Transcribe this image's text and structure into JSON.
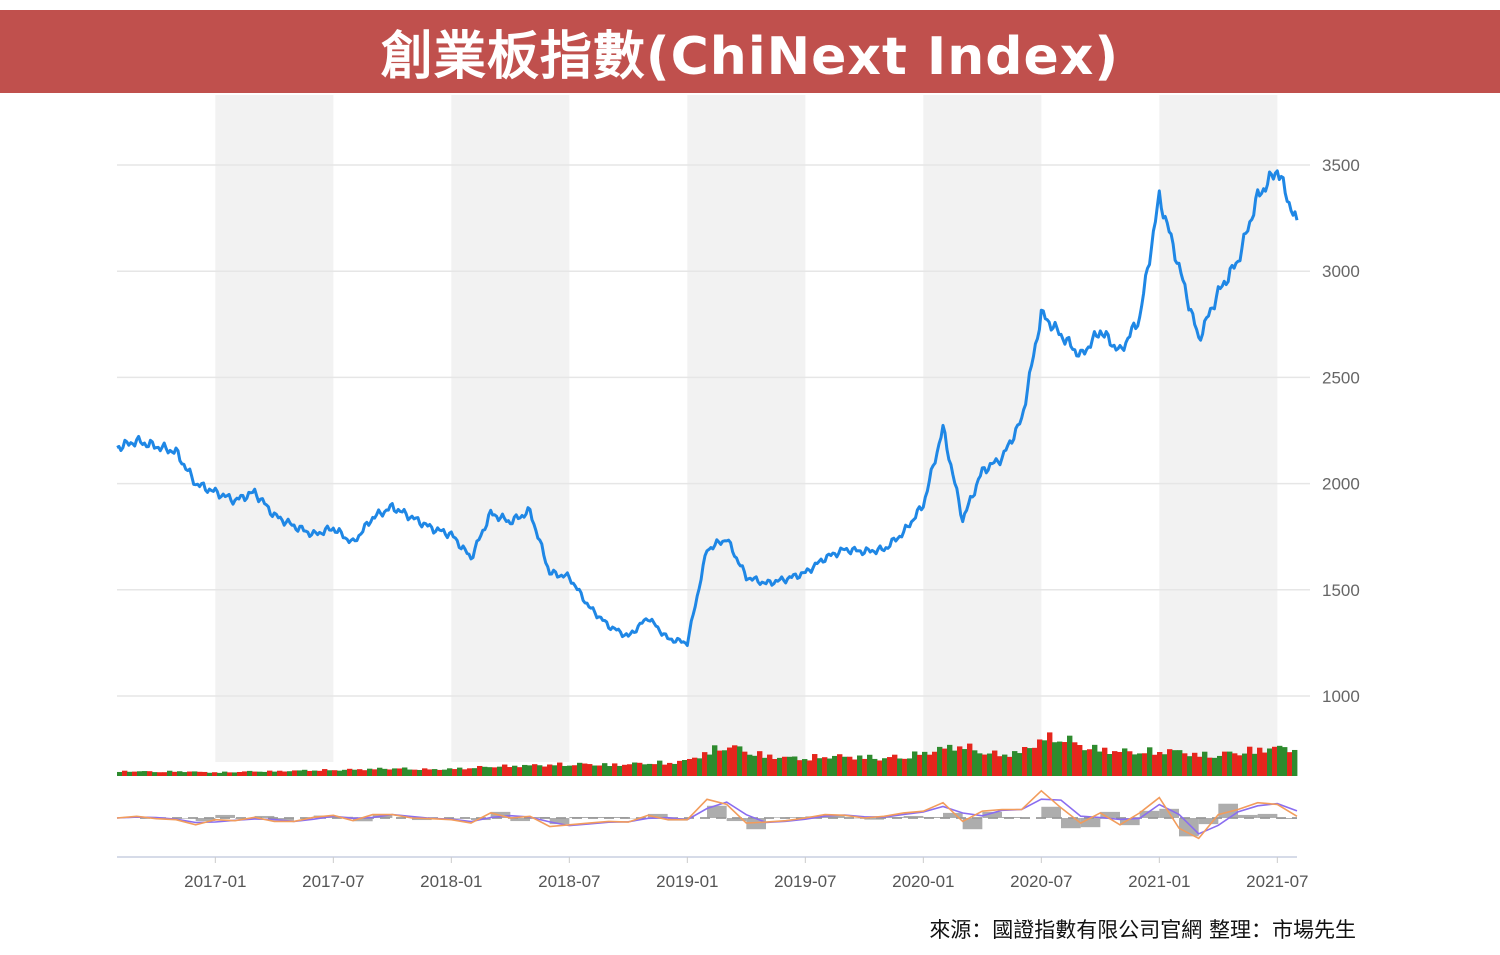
{
  "title": "創業板指數(ChiNext Index)",
  "source_note": "來源：國證指數有限公司官網 整理：市場先生",
  "colors": {
    "banner": "#c0504d",
    "line": "#1f87e5",
    "vol_up": "#e5261d",
    "vol_down": "#2e8b2e",
    "osc_a": "#f29c5c",
    "osc_b": "#8a6df0",
    "osc_hist": "#999999",
    "band": "#f2f2f2",
    "grid": "#e6e6e6"
  },
  "chart_data": {
    "type": "line",
    "title": "創業板指數(ChiNext Index)",
    "xlabel": "",
    "ylabel": "",
    "x_range": [
      "2016-08",
      "2021-08"
    ],
    "ylim": [
      1000,
      3600
    ],
    "y_ticks": [
      "3500",
      "3000",
      "2500",
      "2000",
      "1500",
      "1000"
    ],
    "y_tick_values": [
      3500,
      3000,
      2500,
      2000,
      1500,
      1000
    ],
    "x_ticks": [
      "2017-01",
      "2017-07",
      "2018-01",
      "2018-07",
      "2019-01",
      "2019-07",
      "2020-01",
      "2020-07",
      "2021-01",
      "2021-07"
    ],
    "x_tick_months": [
      5,
      11,
      17,
      23,
      29,
      35,
      41,
      47,
      53,
      59
    ],
    "shaded_ranges_months": [
      [
        5,
        11
      ],
      [
        17,
        23
      ],
      [
        29,
        35
      ],
      [
        41,
        47
      ],
      [
        53,
        59
      ]
    ],
    "y_axis_position": "right",
    "grid": true,
    "series": [
      {
        "x": [
          "2016-08",
          "2016-09",
          "2016-10",
          "2016-11",
          "2016-12",
          "2017-01",
          "2017-02",
          "2017-03",
          "2017-04",
          "2017-05",
          "2017-06",
          "2017-07",
          "2017-08",
          "2017-09",
          "2017-10",
          "2017-11",
          "2017-12",
          "2018-01",
          "2018-02",
          "2018-03",
          "2018-04",
          "2018-05",
          "2018-06",
          "2018-07",
          "2018-08",
          "2018-09",
          "2018-10",
          "2018-11",
          "2018-12",
          "2019-01",
          "2019-02",
          "2019-03",
          "2019-04",
          "2019-05",
          "2019-06",
          "2019-07",
          "2019-08",
          "2019-09",
          "2019-10",
          "2019-11",
          "2019-12",
          "2020-01",
          "2020-02",
          "2020-03",
          "2020-04",
          "2020-05",
          "2020-06",
          "2020-07",
          "2020-08",
          "2020-09",
          "2020-10",
          "2020-11",
          "2020-12",
          "2021-01",
          "2021-02",
          "2021-03",
          "2021-04",
          "2021-05",
          "2021-06",
          "2021-07",
          "2021-08"
        ],
        "values": [
          2170,
          2200,
          2175,
          2150,
          2000,
          1960,
          1920,
          1960,
          1850,
          1800,
          1760,
          1790,
          1720,
          1840,
          1890,
          1840,
          1790,
          1760,
          1650,
          1860,
          1820,
          1870,
          1580,
          1560,
          1420,
          1330,
          1280,
          1370,
          1270,
          1250,
          1690,
          1740,
          1560,
          1530,
          1550,
          1580,
          1650,
          1690,
          1680,
          1690,
          1770,
          1900,
          2260,
          1830,
          2060,
          2120,
          2300,
          2800,
          2700,
          2600,
          2720,
          2620,
          2780,
          3350,
          3020,
          2680,
          2900,
          3050,
          3350,
          3480,
          3220
        ]
      }
    ],
    "volume": {
      "note": "relative volume, 0-1",
      "values": [
        0.08,
        0.08,
        0.07,
        0.08,
        0.07,
        0.06,
        0.07,
        0.08,
        0.08,
        0.09,
        0.1,
        0.1,
        0.11,
        0.12,
        0.13,
        0.12,
        0.11,
        0.12,
        0.14,
        0.16,
        0.17,
        0.18,
        0.19,
        0.2,
        0.2,
        0.19,
        0.2,
        0.22,
        0.22,
        0.26,
        0.4,
        0.52,
        0.42,
        0.34,
        0.31,
        0.3,
        0.33,
        0.33,
        0.32,
        0.3,
        0.33,
        0.38,
        0.46,
        0.52,
        0.4,
        0.36,
        0.4,
        0.6,
        0.68,
        0.52,
        0.45,
        0.42,
        0.4,
        0.42,
        0.42,
        0.36,
        0.35,
        0.4,
        0.44,
        0.48,
        0.45
      ]
    },
    "oscillator": {
      "note": "normalized -1 to 1",
      "line_a": [
        0.0,
        0.05,
        -0.02,
        -0.05,
        -0.2,
        -0.05,
        -0.08,
        0.02,
        -0.1,
        -0.1,
        0.02,
        0.08,
        -0.08,
        0.1,
        0.1,
        0.0,
        -0.02,
        -0.05,
        -0.15,
        0.15,
        0.0,
        0.05,
        -0.25,
        -0.2,
        -0.15,
        -0.1,
        -0.12,
        0.08,
        -0.05,
        -0.05,
        0.55,
        0.4,
        -0.15,
        -0.12,
        -0.08,
        0.0,
        0.1,
        0.08,
        0.0,
        0.05,
        0.15,
        0.2,
        0.45,
        -0.1,
        0.2,
        0.25,
        0.25,
        0.8,
        0.3,
        -0.15,
        0.15,
        -0.2,
        0.15,
        0.6,
        -0.3,
        -0.6,
        0.1,
        0.25,
        0.45,
        0.4,
        0.05
      ]
    }
  }
}
